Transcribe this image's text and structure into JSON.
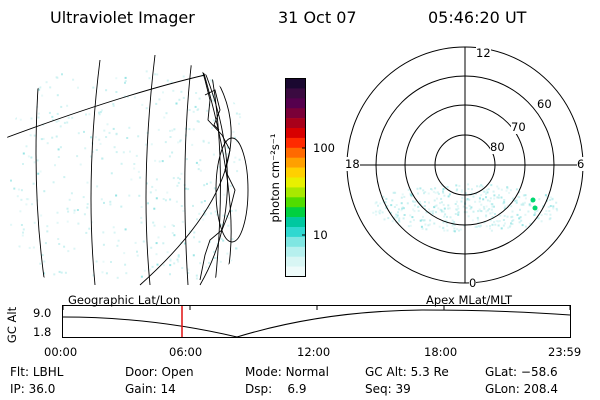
{
  "header": {
    "instrument": "Ultraviolet Imager",
    "date": "31 Oct 07",
    "time": "05:46:20 UT"
  },
  "colorbar": {
    "unit_label": "photon cm⁻²s⁻¹",
    "ticks": [
      "100",
      "10"
    ],
    "colors": [
      "#1a0830",
      "#3a0a40",
      "#55004d",
      "#7a0038",
      "#a8001a",
      "#d80000",
      "#ff2a00",
      "#ff6a00",
      "#ffa000",
      "#ffd000",
      "#e8f000",
      "#a8e800",
      "#50dc00",
      "#00d040",
      "#00c8a0",
      "#30d8d0",
      "#80e6e2",
      "#b6f0ee",
      "#d8f6f4",
      "#eefbfa"
    ]
  },
  "polar_plot": {
    "mlt_labels": {
      "top": "12",
      "right": "6",
      "bottom": "0",
      "left": "18"
    },
    "lat_labels": [
      "60",
      "70",
      "80"
    ]
  },
  "timeline": {
    "y_axis_label": "GC Alt",
    "y_ticks": [
      "9.0",
      "1.8"
    ],
    "left_title": "Geographic Lat/Lon",
    "right_title": "Apex MLat/MLT",
    "x_ticks": [
      "00:00",
      "06:00",
      "12:00",
      "18:00",
      "23:59"
    ]
  },
  "info": {
    "filter": {
      "label": "Flt:",
      "value": "LBHL"
    },
    "door": {
      "label": "Door:",
      "value": "Open"
    },
    "mode": {
      "label": "Mode:",
      "value": "Normal"
    },
    "gc_alt": {
      "label": "GC Alt:",
      "value": "5.3 Re"
    },
    "glat": {
      "label": "GLat:",
      "value": "−58.6"
    },
    "ip": {
      "label": "IP:",
      "value": "36.0"
    },
    "gain": {
      "label": "Gain:",
      "value": "14"
    },
    "dsp": {
      "label": "Dsp:",
      "value": "6.9"
    },
    "seq": {
      "label": "Seq:",
      "value": "39"
    },
    "glon": {
      "label": "GLon:",
      "value": "208.4"
    }
  },
  "colors": {
    "aurora": "#bfeeee",
    "marker": "#e01010"
  }
}
